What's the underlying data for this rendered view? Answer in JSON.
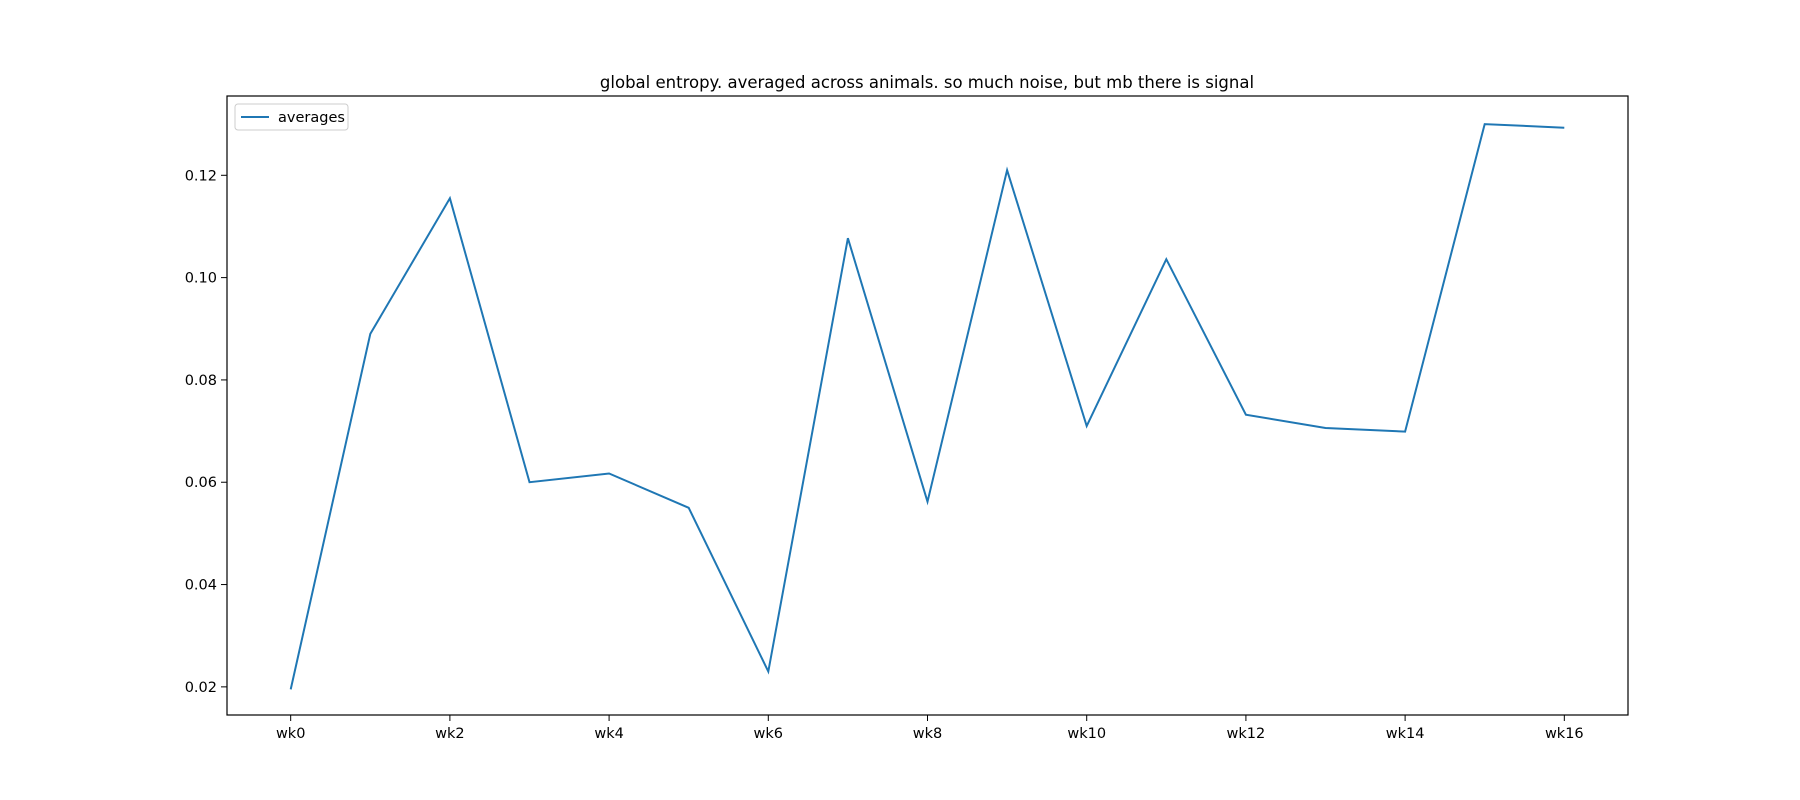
{
  "chart_data": {
    "type": "line",
    "title": "global entropy. averaged across animals. so much noise, but mb there is signal",
    "xlabel": "",
    "ylabel": "",
    "x": [
      "wk0",
      "wk1",
      "wk2",
      "wk3",
      "wk4",
      "wk5",
      "wk6",
      "wk7",
      "wk8",
      "wk9",
      "wk10",
      "wk11",
      "wk12",
      "wk13",
      "wk14",
      "wk15",
      "wk16"
    ],
    "xtick_labels": [
      "wk0",
      "wk2",
      "wk4",
      "wk6",
      "wk8",
      "wk10",
      "wk12",
      "wk14",
      "wk16"
    ],
    "yticks": [
      0.02,
      0.04,
      0.06,
      0.08,
      0.1,
      0.12
    ],
    "ytick_labels": [
      "0.02",
      "0.04",
      "0.06",
      "0.08",
      "0.10",
      "0.12"
    ],
    "ylim": [
      0.0145,
      0.1355
    ],
    "series": [
      {
        "name": "averages",
        "color": "#1f77b4",
        "values": [
          0.0195,
          0.089,
          0.1155,
          0.06,
          0.0617,
          0.055,
          0.023,
          0.1077,
          0.0562,
          0.121,
          0.071,
          0.1036,
          0.0732,
          0.0706,
          0.0699,
          0.13,
          0.1293
        ]
      }
    ],
    "grid": false,
    "legend_position": "upper left"
  }
}
